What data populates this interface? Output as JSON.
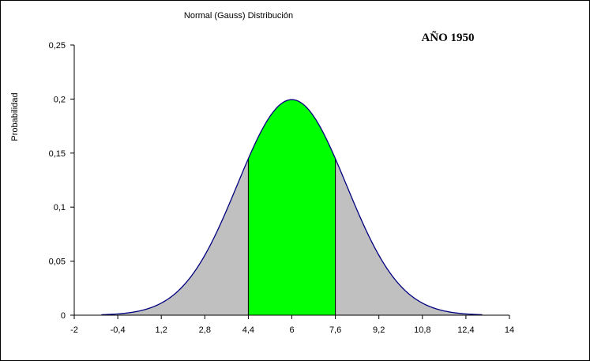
{
  "chart_data": {
    "type": "area",
    "title": "Normal (Gauss) Distribución",
    "annotation": "AÑO 1950",
    "ylabel": "Probabilidad",
    "xlabel": "",
    "xlim": [
      -2,
      14
    ],
    "ylim": [
      0,
      0.25
    ],
    "x_ticks": [
      -2,
      -0.4,
      1.2,
      2.8,
      4.4,
      6,
      7.6,
      9.2,
      10.8,
      12.4,
      14
    ],
    "x_tick_labels": [
      "-2",
      "-0,4",
      "1,2",
      "2,8",
      "4,4",
      "6",
      "7,6",
      "9,2",
      "10,8",
      "12,4",
      "14"
    ],
    "y_ticks": [
      0,
      0.05,
      0.1,
      0.15,
      0.2,
      0.25
    ],
    "y_tick_labels": [
      "0",
      "0,05",
      "0,1",
      "0,15",
      "0,2",
      "0,25"
    ],
    "distribution": {
      "mean": 6,
      "sd": 2
    },
    "curve_range": [
      -1,
      13
    ],
    "highlight_range": [
      4.4,
      7.6
    ],
    "grid": false,
    "legend": "none",
    "colors": {
      "tail_fill": "#c0c0c0",
      "center_fill": "#00ff00",
      "curve": "#000080",
      "axis": "#000000",
      "text": "#000000"
    }
  }
}
